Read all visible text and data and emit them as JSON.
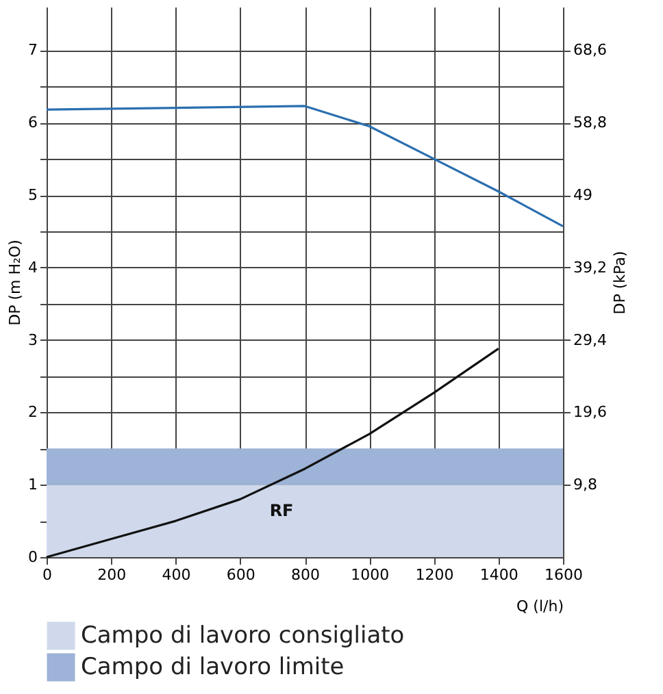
{
  "chart_data": {
    "type": "line",
    "xlabel": "Q (l/h)",
    "ylabel": "DP (m H₂O)",
    "y2label": "DP (kPa)",
    "series": [
      {
        "color": "#2a6fb0",
        "x": [
          0,
          800,
          1000,
          1200,
          1400,
          1600
        ],
        "values": [
          6.18,
          6.23,
          5.95,
          5.5,
          5.05,
          4.57
        ]
      },
      {
        "color": "#111111",
        "x": [
          0,
          200,
          400,
          600,
          800,
          1000,
          1200,
          1400
        ],
        "values": [
          0,
          0.25,
          0.5,
          0.8,
          1.22,
          1.7,
          2.27,
          2.88
        ]
      }
    ],
    "bands": [
      {
        "axis": "y",
        "from": 0,
        "to": 1,
        "label": "Campo di lavoro consigliato",
        "color": "#d0d9ec"
      },
      {
        "axis": "y",
        "from": 1,
        "to": 1.5,
        "label": "Campo di lavoro limite",
        "color": "#9db3d7"
      }
    ],
    "annotations": [
      "RF"
    ],
    "xlim": [
      0,
      1600
    ],
    "xticks": [
      0,
      200,
      400,
      600,
      800,
      1000,
      1200,
      1400,
      1600
    ],
    "ylim": [
      0,
      7.6
    ],
    "yticks": [
      0,
      {
        "value": 0.5,
        "label": null
      },
      1,
      {
        "value": 1.5,
        "label": null
      },
      2,
      {
        "value": 2.5,
        "label": null
      },
      3,
      {
        "value": 3.5,
        "label": null
      },
      4,
      {
        "value": 4.5,
        "label": null
      },
      5,
      {
        "value": 5.5,
        "label": null
      },
      6,
      {
        "value": 6.5,
        "label": null
      },
      7
    ],
    "y2lim": [
      0,
      74.48
    ],
    "y2ticks": [
      {
        "value": 9.8,
        "label": "9,8"
      },
      {
        "value": 19.6,
        "label": "19,6"
      },
      {
        "value": 29.4,
        "label": "29,4"
      },
      {
        "value": 39.2,
        "label": "39,2"
      },
      49,
      {
        "value": 58.8,
        "label": "58,8"
      },
      {
        "value": 68.6,
        "label": "68,6"
      }
    ],
    "grid": true,
    "legend": "bottom",
    "marker": "none",
    "line_style": "solid"
  }
}
